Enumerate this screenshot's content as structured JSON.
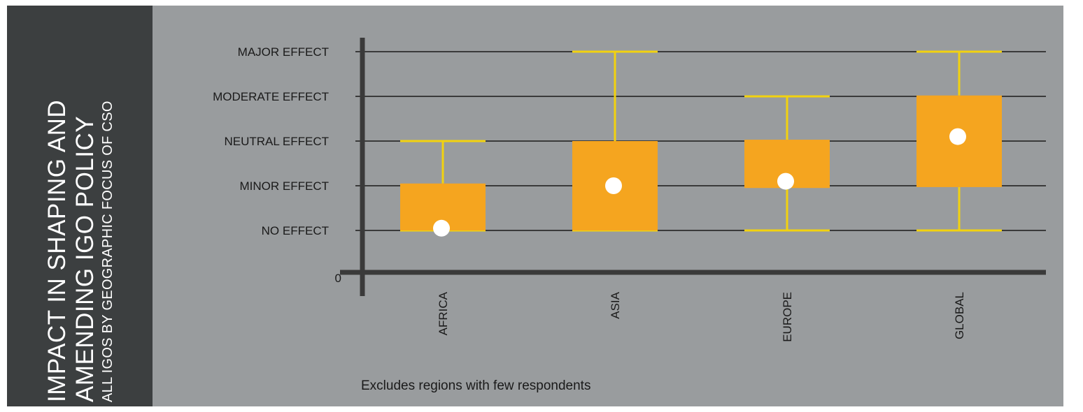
{
  "side_title": {
    "line1": "IMPACT IN SHAPING AND",
    "line2": "AMENDING IGO POLICY",
    "subtitle": "ALL IGOS BY GEOGRAPHIC FOCUS OF CSO"
  },
  "footnote": "Excludes regions with few respondents",
  "colors": {
    "side_panel": "#3c3f40",
    "chart_background": "#999c9e",
    "box_fill": "#f5a51f",
    "whisker": "#f2d20f",
    "mean_marker": "#ffffff",
    "axis": "#3a3a3a"
  },
  "chart_data": {
    "type": "box",
    "title": "",
    "xlabel": "",
    "ylabel": "",
    "ylim": [
      0,
      5
    ],
    "y_ticks": [
      {
        "value": 0,
        "label": "0"
      },
      {
        "value": 1,
        "label": "NO EFFECT"
      },
      {
        "value": 2,
        "label": "MINOR EFFECT"
      },
      {
        "value": 3,
        "label": "NEUTRAL EFFECT"
      },
      {
        "value": 4,
        "label": "MODERATE EFFECT"
      },
      {
        "value": 5,
        "label": "MAJOR EFFECT"
      }
    ],
    "grid": true,
    "legend": "none",
    "categories": [
      "AFRICA",
      "ASIA",
      "EUROPE",
      "GLOBAL"
    ],
    "boxes": [
      {
        "category": "AFRICA",
        "min": 1,
        "q1": 1,
        "q3": 2.05,
        "max": 3,
        "mean": 1.05
      },
      {
        "category": "ASIA",
        "min": 1,
        "q1": 1,
        "q3": 3,
        "max": 5,
        "mean": 2
      },
      {
        "category": "EUROPE",
        "min": 1,
        "q1": 1.95,
        "q3": 3.03,
        "max": 4,
        "mean": 2.1
      },
      {
        "category": "GLOBAL",
        "min": 1,
        "q1": 1.97,
        "q3": 4.02,
        "max": 5,
        "mean": 3.1
      }
    ]
  }
}
